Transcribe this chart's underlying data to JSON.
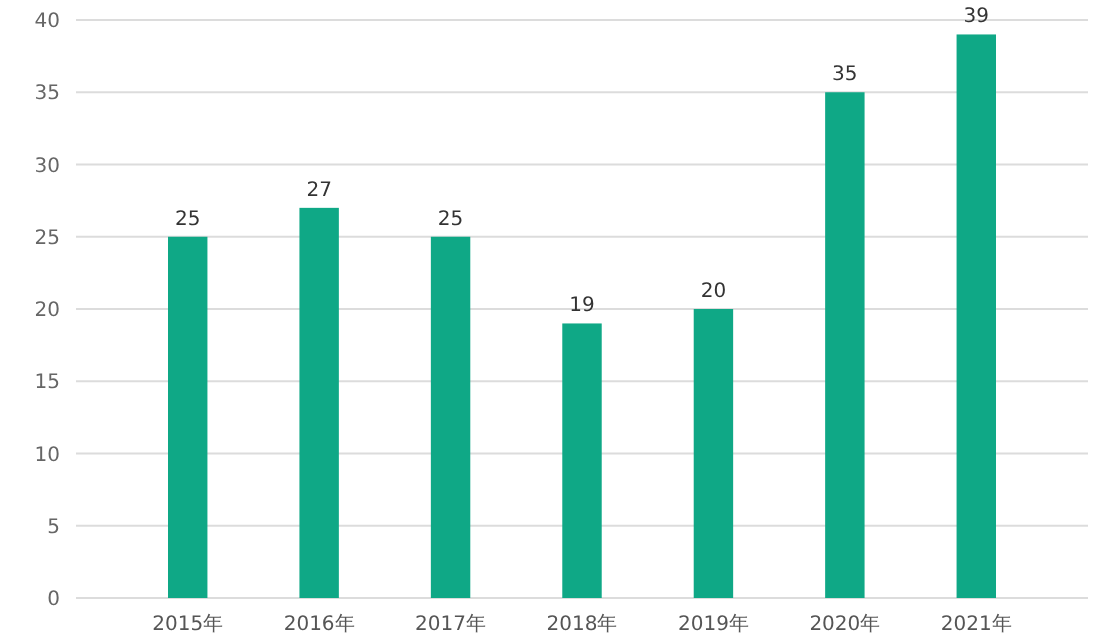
{
  "chart_data": {
    "type": "bar",
    "categories": [
      "2015年",
      "2016年",
      "2017年",
      "2018年",
      "2019年",
      "2020年",
      "2021年"
    ],
    "values": [
      25,
      27,
      25,
      19,
      20,
      35,
      39
    ],
    "color": "#0fa886",
    "ylim": [
      0,
      40
    ],
    "yticks": [
      0,
      5,
      10,
      15,
      20,
      25,
      30,
      35,
      40
    ],
    "grid": "y",
    "data_labels": true
  }
}
